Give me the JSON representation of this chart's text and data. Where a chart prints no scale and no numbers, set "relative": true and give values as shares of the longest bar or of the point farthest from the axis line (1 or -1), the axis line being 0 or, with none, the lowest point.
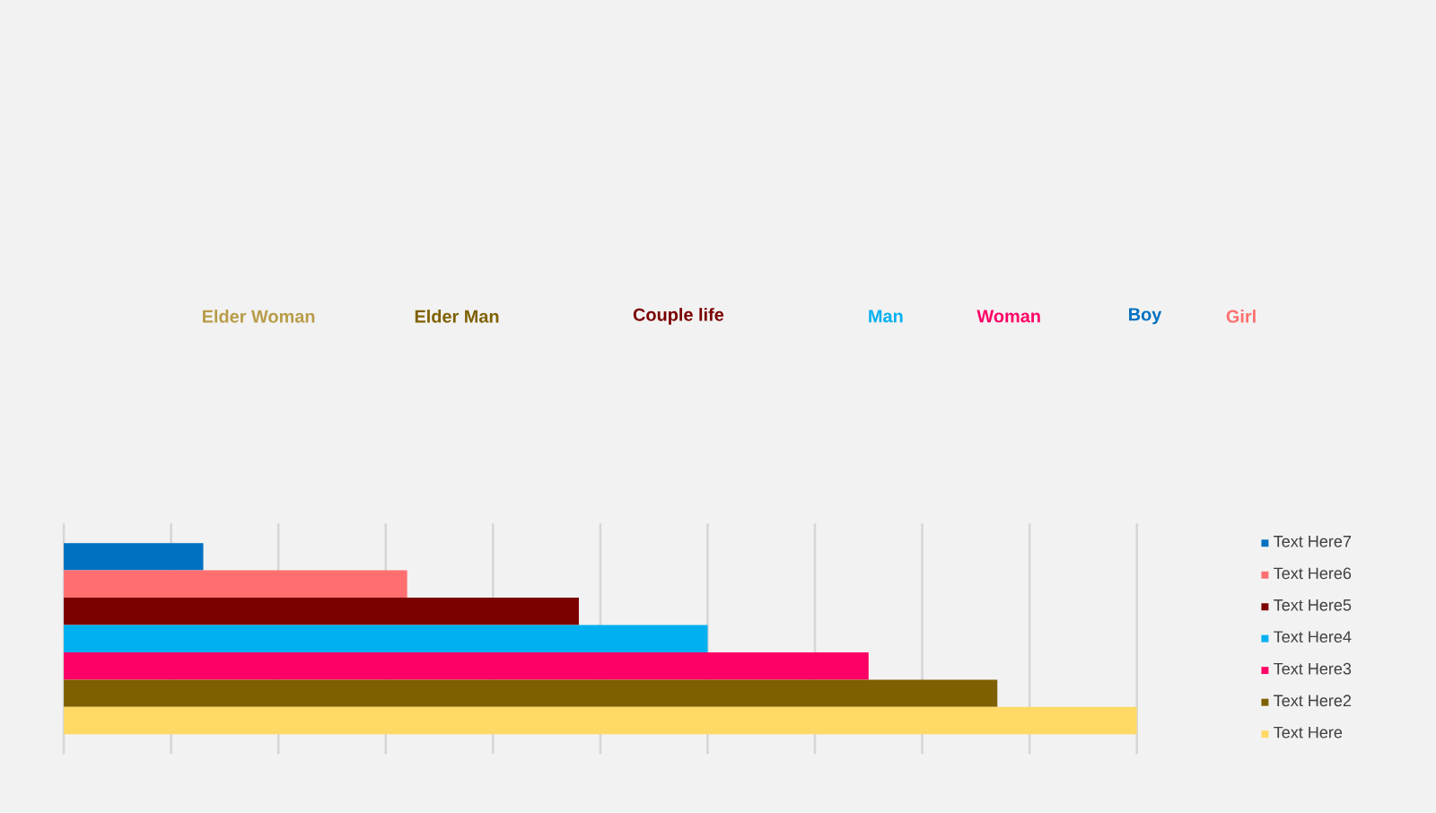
{
  "chart_data": {
    "type": "bar",
    "orientation": "horizontal",
    "relative": true,
    "categories": [
      null
    ],
    "series": [
      {
        "name": "Text Here7",
        "color": "#0070c0",
        "values": [
          0.13
        ]
      },
      {
        "name": "Text Here6",
        "color": "#ff6f6f",
        "values": [
          0.32
        ]
      },
      {
        "name": "Text Here5",
        "color": "#7b0000",
        "values": [
          0.48
        ]
      },
      {
        "name": "Text Here4",
        "color": "#00b0f0",
        "values": [
          0.6
        ]
      },
      {
        "name": "Text Here3",
        "color": "#ff0066",
        "values": [
          0.75
        ]
      },
      {
        "name": "Text Here2",
        "color": "#7f6000",
        "values": [
          0.87
        ]
      },
      {
        "name": "Text Here",
        "color": "#ffd966",
        "values": [
          1
        ]
      }
    ],
    "annotations": [
      "Elder Woman",
      "Elder Man",
      "Couple life",
      "Man",
      "Woman",
      "Boy",
      "Girl"
    ],
    "grid": "x",
    "legend": "right"
  }
}
